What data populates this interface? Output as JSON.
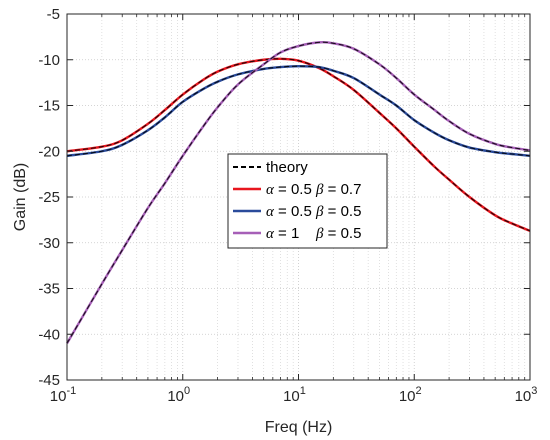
{
  "chart_data": {
    "type": "line",
    "xlabel": "Freq (Hz)",
    "ylabel": "Gain (dB)",
    "xscale": "log",
    "xlim": [
      0.1,
      1000
    ],
    "ylim": [
      -45,
      -5
    ],
    "grid": true,
    "minor_grid": true,
    "legend_position": "center",
    "xticks": [
      {
        "value": 0.1,
        "base": "10",
        "exp": "-1"
      },
      {
        "value": 1,
        "base": "10",
        "exp": "0"
      },
      {
        "value": 10,
        "base": "10",
        "exp": "1"
      },
      {
        "value": 100,
        "base": "10",
        "exp": "2"
      },
      {
        "value": 1000,
        "base": "10",
        "exp": "3"
      }
    ],
    "yticks": [
      -45,
      -40,
      -35,
      -30,
      -25,
      -20,
      -15,
      -10,
      -5
    ],
    "series": [
      {
        "key": "red",
        "color": "#e8161e",
        "legend": {
          "alpha_sym": "α",
          "alpha_eq": " = 0.5 ",
          "beta_sym": "β",
          "beta_eq": " = 0.7"
        },
        "x": [
          0.1,
          0.2,
          0.3,
          0.5,
          0.7,
          1,
          1.5,
          2,
          3,
          5,
          7,
          10,
          15,
          20,
          30,
          50,
          70,
          100,
          150,
          200,
          300,
          500,
          700,
          1000
        ],
        "y": [
          -20,
          -19.5,
          -18.8,
          -17,
          -15.5,
          -13.8,
          -12.2,
          -11.3,
          -10.5,
          -10,
          -9.9,
          -10.1,
          -10.9,
          -11.8,
          -13.3,
          -15.8,
          -17.5,
          -19.5,
          -21.7,
          -23.1,
          -25,
          -27,
          -27.9,
          -28.7
        ]
      },
      {
        "key": "blue",
        "color": "#2a4b9b",
        "legend": {
          "alpha_sym": "α",
          "alpha_eq": " = 0.5 ",
          "beta_sym": "β",
          "beta_eq": " = 0.5"
        },
        "x": [
          0.1,
          0.2,
          0.3,
          0.5,
          0.7,
          1,
          1.5,
          2,
          3,
          5,
          7,
          10,
          15,
          20,
          30,
          50,
          70,
          100,
          150,
          200,
          300,
          500,
          700,
          1000
        ],
        "y": [
          -20.5,
          -20,
          -19.3,
          -17.7,
          -16.3,
          -14.6,
          -13.2,
          -12.4,
          -11.6,
          -11,
          -10.8,
          -10.7,
          -10.8,
          -11.2,
          -12,
          -13.8,
          -15,
          -16.6,
          -18,
          -18.8,
          -19.6,
          -20.1,
          -20.3,
          -20.5
        ]
      },
      {
        "key": "purple",
        "color": "#a65fb7",
        "legend": {
          "alpha_sym": "α",
          "alpha_eq": " = 1    ",
          "beta_sym": "β",
          "beta_eq": " = 0.5"
        },
        "x": [
          0.1,
          0.2,
          0.3,
          0.5,
          0.7,
          1,
          1.5,
          2,
          3,
          5,
          7,
          10,
          15,
          20,
          30,
          50,
          70,
          100,
          150,
          200,
          300,
          500,
          700,
          1000
        ],
        "y": [
          -41,
          -34.5,
          -30.8,
          -26.2,
          -23.5,
          -20.5,
          -17.3,
          -15.2,
          -12.7,
          -10.5,
          -9.2,
          -8.5,
          -8.1,
          -8.2,
          -8.8,
          -10.5,
          -12,
          -13.8,
          -15.5,
          -16.7,
          -18.1,
          -19.2,
          -19.6,
          -19.9
        ]
      }
    ],
    "legend_theory": "theory"
  }
}
